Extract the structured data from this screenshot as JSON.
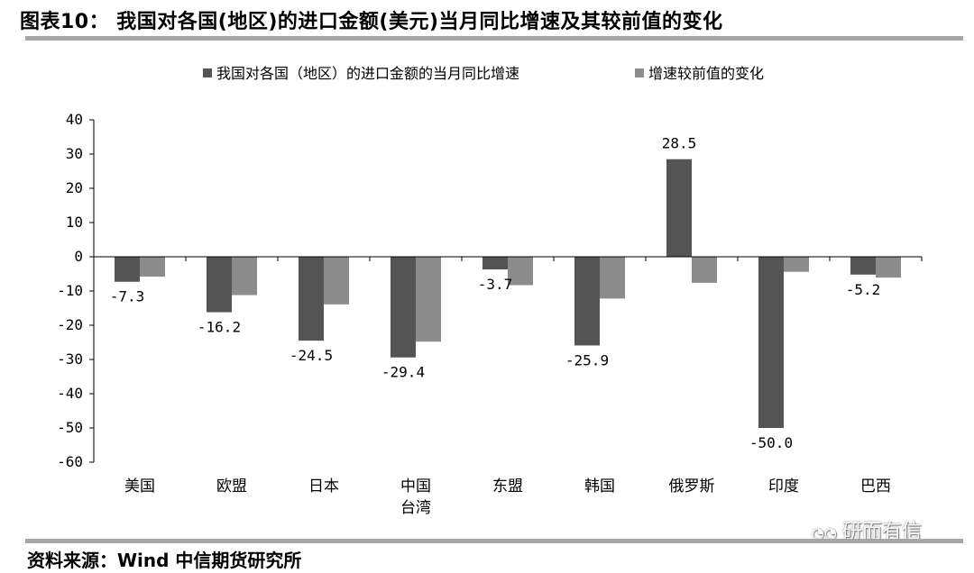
{
  "title": "图表10：  我国对各国(地区)的进口金额(美元)当月同比增速及其较前值的变化",
  "source": "资料来源：Wind 中信期货研究所",
  "watermark": "研而有信",
  "colors": {
    "series1": "#545454",
    "series2": "#8c8c8c",
    "rule": "#a6a6a6"
  },
  "chart_data": {
    "type": "bar",
    "categories": [
      [
        "美国"
      ],
      [
        "欧盟"
      ],
      [
        "日本"
      ],
      [
        "中国",
        "台湾"
      ],
      [
        "东盟"
      ],
      [
        "韩国"
      ],
      [
        "俄罗斯"
      ],
      [
        "印度"
      ],
      [
        "巴西"
      ]
    ],
    "series": [
      {
        "name": "我国对各国（地区）的进口金额的当月同比增速",
        "values": [
          -7.3,
          -16.2,
          -24.5,
          -29.4,
          -3.7,
          -25.9,
          28.5,
          -50.0,
          -5.2
        ],
        "labels": [
          "-7.3",
          "-16.2",
          "-24.5",
          "-29.4",
          "-3.7",
          "-25.9",
          "28.5",
          "-50.0",
          "-5.2"
        ]
      },
      {
        "name": "增速较前值的变化",
        "values": [
          -5.8,
          -11.2,
          -13.9,
          -24.8,
          -8.3,
          -12.2,
          -7.6,
          -4.4,
          -6.1
        ]
      }
    ],
    "ylim": [
      -60,
      40
    ],
    "yticks": [
      40,
      30,
      20,
      10,
      0,
      -10,
      -20,
      -30,
      -40,
      -50,
      -60
    ],
    "legend_position": "top",
    "grid": false
  }
}
